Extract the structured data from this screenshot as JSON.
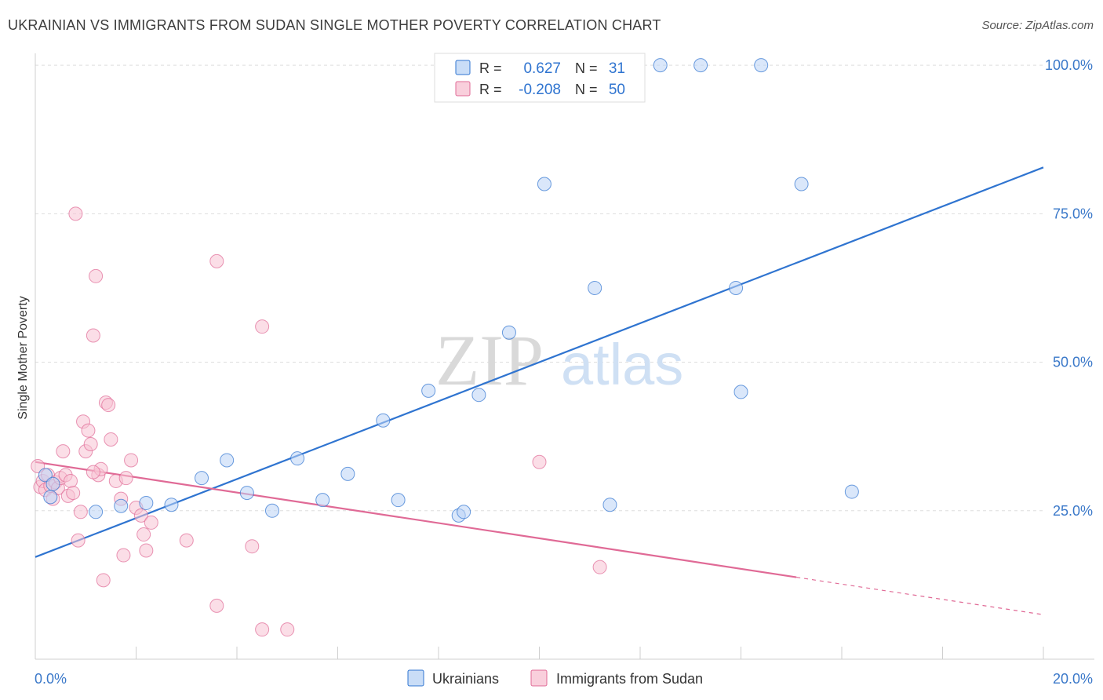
{
  "title": "UKRAINIAN VS IMMIGRANTS FROM SUDAN SINGLE MOTHER POVERTY CORRELATION CHART",
  "source": "Source: ZipAtlas.com",
  "watermark": {
    "zip": "ZIP",
    "atlas": "atlas"
  },
  "colors": {
    "blue": "#2f74d0",
    "blue_fill": "#bcd4f5",
    "pink": "#e06a96",
    "pink_fill": "#f7c3d3",
    "axis_label": "#3a78c9",
    "grid": "#dddddd"
  },
  "legend": {
    "rows": [
      {
        "r_label": "R =",
        "r_value": "0.627",
        "n_label": "N =",
        "n_value": "31"
      },
      {
        "r_label": "R =",
        "r_value": "-0.208",
        "n_label": "N =",
        "n_value": "50"
      }
    ]
  },
  "chart_data": {
    "type": "scatter",
    "title": "UKRAINIAN VS IMMIGRANTS FROM SUDAN SINGLE MOTHER POVERTY CORRELATION CHART",
    "xlabel": "",
    "ylabel": "Single Mother Poverty",
    "xlim": [
      0,
      20
    ],
    "ylim": [
      0,
      102
    ],
    "x_tick_labels": [
      "0.0%",
      "20.0%"
    ],
    "y_ticks": [
      25,
      50,
      75,
      100
    ],
    "y_tick_labels": [
      "25.0%",
      "50.0%",
      "75.0%",
      "100.0%"
    ],
    "legend_position": "bottom-center",
    "series": [
      {
        "name": "Ukrainians",
        "r": 0.627,
        "n": 31,
        "trend": {
          "x0": 0,
          "y0": 17.2,
          "x1": 20,
          "y1": 82.8,
          "dashed_from": null
        },
        "points": [
          [
            0.2,
            31.0
          ],
          [
            0.35,
            29.5
          ],
          [
            0.3,
            27.3
          ],
          [
            1.2,
            24.8
          ],
          [
            1.7,
            25.8
          ],
          [
            2.2,
            26.3
          ],
          [
            2.7,
            26.0
          ],
          [
            3.3,
            30.5
          ],
          [
            3.8,
            33.5
          ],
          [
            4.2,
            28.0
          ],
          [
            4.7,
            25.0
          ],
          [
            5.2,
            33.8
          ],
          [
            5.7,
            26.8
          ],
          [
            6.2,
            31.2
          ],
          [
            6.9,
            40.2
          ],
          [
            7.2,
            26.8
          ],
          [
            7.8,
            45.2
          ],
          [
            8.4,
            24.2
          ],
          [
            8.5,
            24.8
          ],
          [
            8.8,
            44.5
          ],
          [
            9.4,
            55.0
          ],
          [
            10.1,
            80.0
          ],
          [
            11.1,
            62.5
          ],
          [
            11.4,
            26.0
          ],
          [
            12.4,
            100.0
          ],
          [
            13.2,
            100.0
          ],
          [
            13.9,
            62.5
          ],
          [
            14.0,
            45.0
          ],
          [
            14.4,
            100.0
          ],
          [
            15.2,
            80.0
          ],
          [
            16.2,
            28.2
          ]
        ]
      },
      {
        "name": "Immigrants from Sudan",
        "r": -0.208,
        "n": 50,
        "trend": {
          "x0": 0,
          "y0": 33.2,
          "x1": 20,
          "y1": 7.5,
          "dashed_from": 15.1
        },
        "points": [
          [
            0.05,
            32.5
          ],
          [
            0.1,
            29.0
          ],
          [
            0.15,
            30.0
          ],
          [
            0.2,
            28.5
          ],
          [
            0.25,
            31.0
          ],
          [
            0.3,
            29.2
          ],
          [
            0.35,
            27.0
          ],
          [
            0.4,
            29.8
          ],
          [
            0.45,
            28.8
          ],
          [
            0.5,
            30.5
          ],
          [
            0.55,
            35.0
          ],
          [
            0.6,
            31.0
          ],
          [
            0.65,
            27.5
          ],
          [
            0.7,
            30.0
          ],
          [
            0.75,
            28.0
          ],
          [
            0.8,
            75.0
          ],
          [
            0.85,
            20.0
          ],
          [
            0.9,
            24.8
          ],
          [
            0.95,
            40.0
          ],
          [
            1.0,
            35.0
          ],
          [
            1.05,
            38.5
          ],
          [
            1.1,
            36.2
          ],
          [
            1.15,
            54.5
          ],
          [
            1.2,
            64.5
          ],
          [
            1.25,
            31.0
          ],
          [
            1.3,
            32.0
          ],
          [
            1.35,
            13.3
          ],
          [
            1.4,
            43.2
          ],
          [
            1.45,
            42.8
          ],
          [
            1.5,
            37.0
          ],
          [
            1.6,
            30.0
          ],
          [
            1.7,
            27.0
          ],
          [
            1.75,
            17.5
          ],
          [
            1.8,
            30.5
          ],
          [
            1.9,
            33.5
          ],
          [
            2.0,
            25.5
          ],
          [
            2.1,
            24.2
          ],
          [
            2.15,
            21.0
          ],
          [
            2.2,
            18.3
          ],
          [
            2.3,
            23.0
          ],
          [
            3.0,
            20.0
          ],
          [
            3.6,
            67.0
          ],
          [
            3.6,
            9.0
          ],
          [
            4.3,
            19.0
          ],
          [
            4.5,
            56.0
          ],
          [
            4.5,
            5.0
          ],
          [
            5.0,
            5.0
          ],
          [
            10.0,
            33.2
          ],
          [
            11.2,
            15.5
          ],
          [
            1.15,
            31.5
          ]
        ]
      }
    ]
  }
}
